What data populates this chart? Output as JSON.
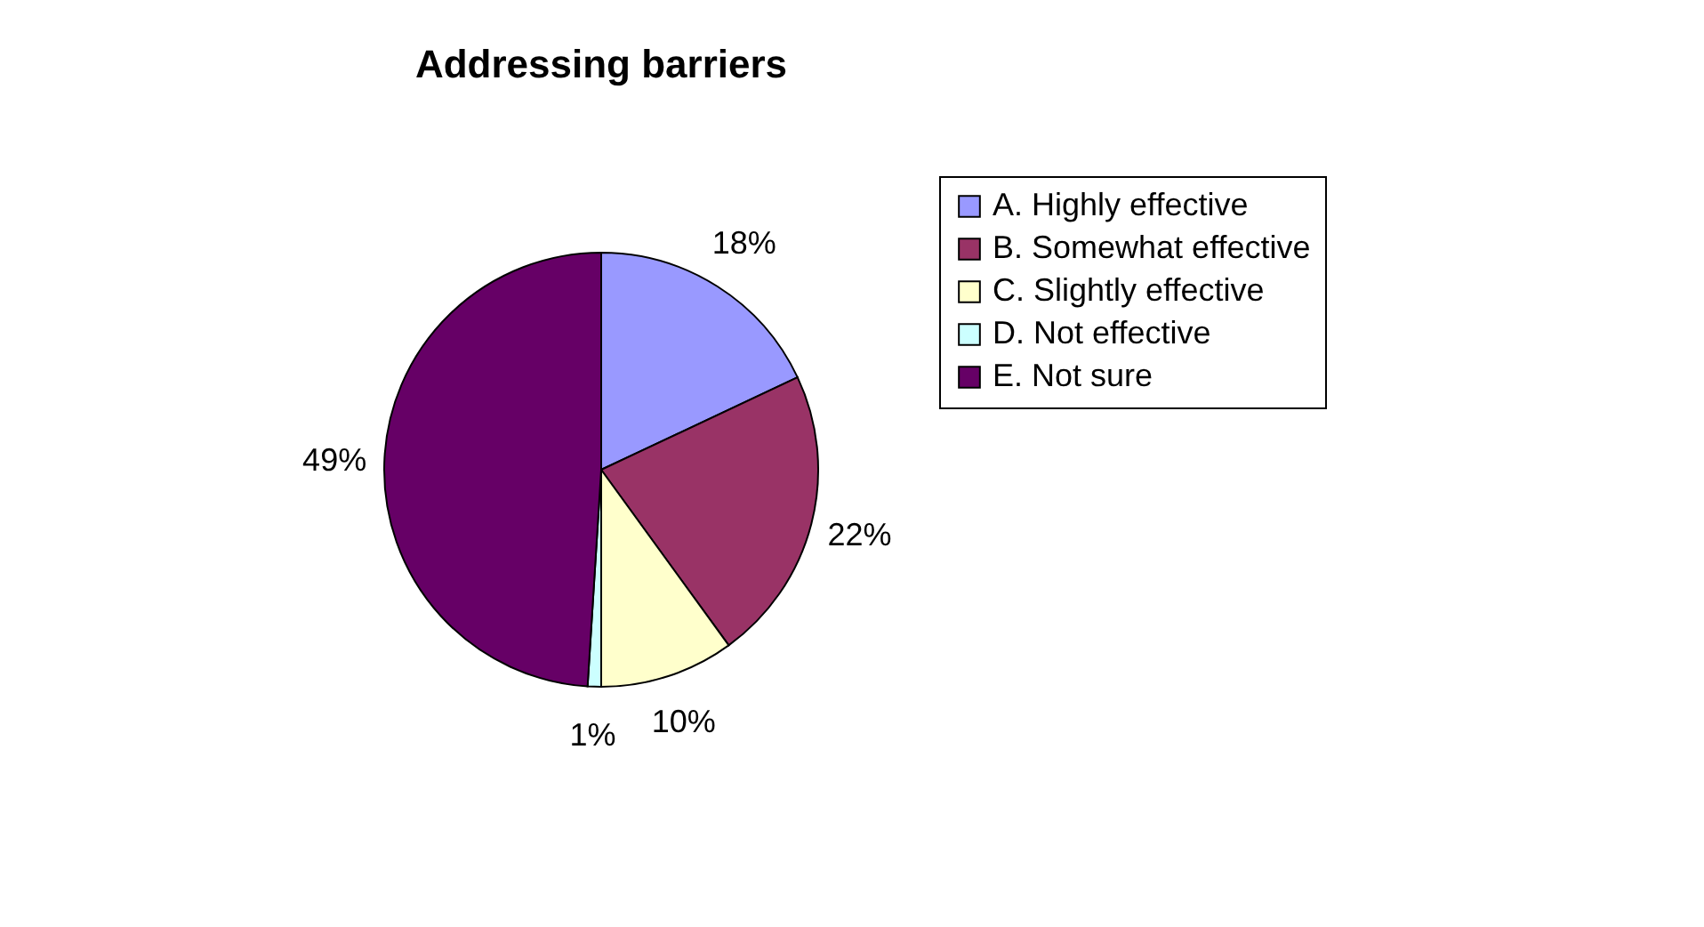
{
  "chart_data": {
    "type": "pie",
    "title": "Addressing barriers",
    "categories": [
      "A. Highly effective",
      "B. Somewhat effective",
      "C. Slightly effective",
      "D. Not effective",
      "E. Not sure"
    ],
    "values": [
      18,
      22,
      10,
      1,
      49
    ],
    "colors": [
      "#9999ff",
      "#993366",
      "#ffffcc",
      "#ccffff",
      "#660066"
    ],
    "value_labels": [
      "18%",
      "22%",
      "10%",
      "1%",
      "49%"
    ],
    "legend": "right"
  }
}
